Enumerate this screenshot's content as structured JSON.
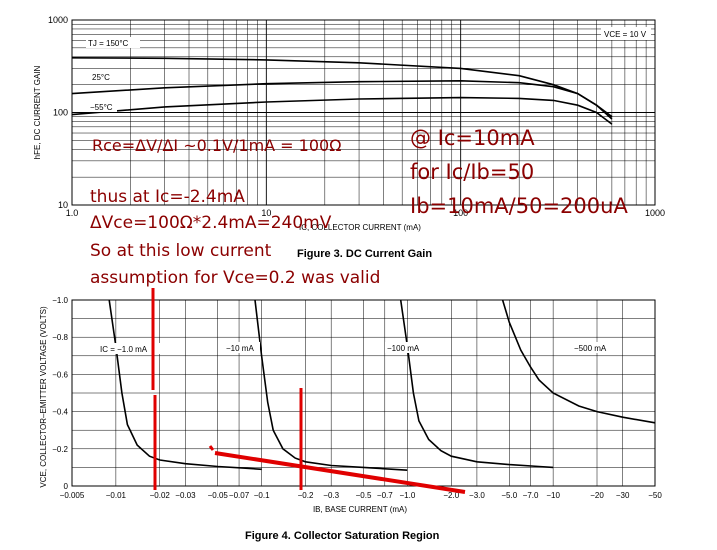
{
  "chart_data": [
    {
      "type": "line",
      "title": "Figure 3. DC Current Gain",
      "xlabel": "IC, COLLECTOR CURRENT (mA)",
      "ylabel": "hFE, DC CURRENT GAIN",
      "xscale": "log",
      "yscale": "log",
      "xlim": [
        1.0,
        1000
      ],
      "ylim": [
        10,
        1000
      ],
      "x_tick_labels": [
        "1.0",
        "10",
        "100",
        "1000"
      ],
      "y_tick_labels": [
        "10",
        "100",
        "1000"
      ],
      "grid": true,
      "condition_label": "VCE = 10 V",
      "series": [
        {
          "name": "TJ = 150°C",
          "x": [
            1,
            3,
            10,
            30,
            100,
            200,
            300,
            400,
            500,
            600
          ],
          "y": [
            390,
            385,
            370,
            345,
            300,
            250,
            200,
            160,
            120,
            90
          ]
        },
        {
          "name": "25°C",
          "x": [
            1,
            3,
            10,
            30,
            100,
            200,
            300,
            400,
            500,
            600
          ],
          "y": [
            160,
            185,
            205,
            215,
            220,
            210,
            190,
            160,
            120,
            85
          ]
        },
        {
          "name": "−55°C",
          "x": [
            1,
            3,
            10,
            30,
            100,
            200,
            300,
            400,
            500,
            600
          ],
          "y": [
            95,
            115,
            130,
            140,
            145,
            142,
            135,
            120,
            100,
            75
          ]
        }
      ]
    },
    {
      "type": "line",
      "title": "Figure 4. Collector Saturation Region",
      "xlabel": "IB, BASE CURRENT (mA)",
      "ylabel": "VCE, COLLECTOR–EMITTER VOLTAGE (VOLTS)",
      "xscale": "log",
      "xlim": [
        0.005,
        50
      ],
      "ylim": [
        0,
        -1.0
      ],
      "x_tick_labels": [
        "−0.005",
        "−0.01",
        "−0.02",
        "−0.03",
        "−0.05",
        "−0.07",
        "−0.1",
        "−0.2",
        "−0.3",
        "−0.5",
        "−0.7",
        "−1.0",
        "−2.0",
        "−3.0",
        "−5.0",
        "−7.0",
        "−10",
        "−20",
        "−30",
        "−50"
      ],
      "y_tick_labels": [
        "0",
        "−0.2",
        "−0.4",
        "−0.6",
        "−0.8",
        "−1.0"
      ],
      "grid": true,
      "series": [
        {
          "name": "IC = −1.0 mA",
          "x": [
            0.009,
            0.01,
            0.011,
            0.012,
            0.014,
            0.017,
            0.02,
            0.03,
            0.05,
            0.08,
            0.1
          ],
          "y": [
            -1.0,
            -0.75,
            -0.5,
            -0.33,
            -0.22,
            -0.16,
            -0.14,
            -0.12,
            -0.105,
            -0.095,
            -0.09
          ]
        },
        {
          "name": "−10 mA",
          "x": [
            0.09,
            0.1,
            0.11,
            0.12,
            0.14,
            0.17,
            0.2,
            0.3,
            0.5,
            0.8,
            1.0
          ],
          "y": [
            -1.0,
            -0.7,
            -0.45,
            -0.3,
            -0.2,
            -0.15,
            -0.13,
            -0.11,
            -0.1,
            -0.09,
            -0.085
          ]
        },
        {
          "name": "−100 mA",
          "x": [
            0.9,
            1.0,
            1.1,
            1.2,
            1.4,
            1.7,
            2.0,
            3.0,
            5.0,
            8.0,
            10
          ],
          "y": [
            -1.0,
            -0.75,
            -0.5,
            -0.35,
            -0.25,
            -0.19,
            -0.16,
            -0.13,
            -0.115,
            -0.105,
            -0.1
          ]
        },
        {
          "name": "−500 mA",
          "x": [
            4.5,
            5.0,
            6.0,
            7.0,
            8.0,
            10,
            15,
            20,
            30,
            50
          ],
          "y": [
            -1.0,
            -0.88,
            -0.73,
            -0.64,
            -0.57,
            -0.5,
            -0.43,
            -0.4,
            -0.37,
            -0.34
          ]
        }
      ]
    }
  ],
  "annotations": {
    "rce": "Rce=ΔV/ΔI ~0.1V/1mA = 100Ω",
    "at_ic": "@ Ic=10mA",
    "for_ratio": "for Ic/Ib=50",
    "ib_value": "Ib=10mA/50=200uA",
    "thus": "thus at Ic=-2.4mA",
    "dvce": "ΔVce=100Ω*2.4mA=240mV",
    "so_low": "So at this low current",
    "assumption": "assumption for Vce=0.2 was valid"
  },
  "colors": {
    "annotation_text": "#8b0000",
    "markup_red": "#e00000",
    "curve": "#000000",
    "grid": "#000000"
  }
}
